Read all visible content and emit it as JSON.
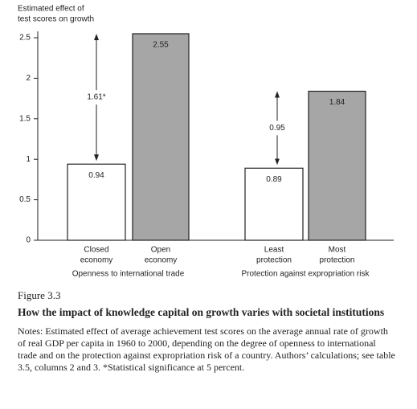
{
  "chart_data": {
    "type": "bar",
    "ylabel": [
      "Estimated effect of",
      "test scores on growth"
    ],
    "categories": [
      [
        "Closed",
        "economy"
      ],
      [
        "Open",
        "economy"
      ],
      [
        "Least",
        "protection"
      ],
      [
        "Most",
        "protection"
      ]
    ],
    "values": [
      0.94,
      2.55,
      0.89,
      1.84
    ],
    "colors": [
      "#ffffff",
      "#a6a6a6",
      "#ffffff",
      "#a6a6a6"
    ],
    "group_labels": [
      "Openness to international trade",
      "Protection against expropriation risk"
    ],
    "differences": [
      1.61,
      0.95
    ],
    "difference_labels": [
      "1.61*",
      "0.95"
    ],
    "ylim": [
      0,
      2.5
    ],
    "yticks": [
      0,
      0.5,
      1,
      1.5,
      2,
      2.5
    ]
  },
  "caption": {
    "figure": "Figure 3.3",
    "title": "How the impact of knowledge capital on growth varies with societal institutions",
    "notes": "Notes: Estimated effect of average achievement test scores on the average annual rate of growth of real GDP per capita in 1960 to 2000, depending on the degree of openness to international trade and on the protection against expropriation risk of a country. Authors’ calculations; see table 3.5, columns 2 and 3. *Statistical significance at 5 percent."
  }
}
